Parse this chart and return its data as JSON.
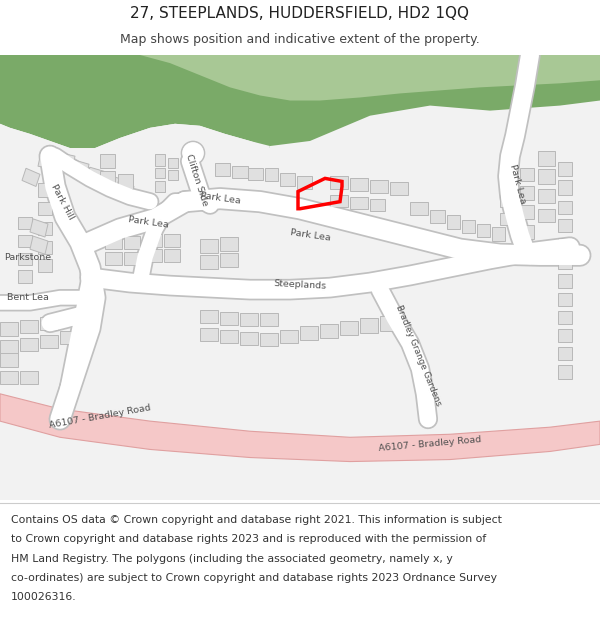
{
  "title": "27, STEEPLANDS, HUDDERSFIELD, HD2 1QQ",
  "subtitle": "Map shows position and indicative extent of the property.",
  "footer_lines": [
    "Contains OS data © Crown copyright and database right 2021. This information is subject",
    "to Crown copyright and database rights 2023 and is reproduced with the permission of",
    "HM Land Registry. The polygons (including the associated geometry, namely x, y",
    "co-ordinates) are subject to Crown copyright and database rights 2023 Ordnance Survey",
    "100026316."
  ],
  "bg_color": "#ffffff",
  "map_bg": "#f2f2f2",
  "road_fill": "#ffffff",
  "road_outline": "#c8c8c8",
  "building_fill": "#e0e0e0",
  "building_outline": "#b8b8b8",
  "green_dark": "#7aaa68",
  "green_light": "#a8c895",
  "road_a_fill": "#f5c8c8",
  "road_a_outline": "#e0a0a0",
  "property_color": "#ff0000",
  "label_color": "#505050",
  "title_fontsize": 11,
  "subtitle_fontsize": 9,
  "footer_fontsize": 7.8,
  "label_fontsize": 6.8
}
